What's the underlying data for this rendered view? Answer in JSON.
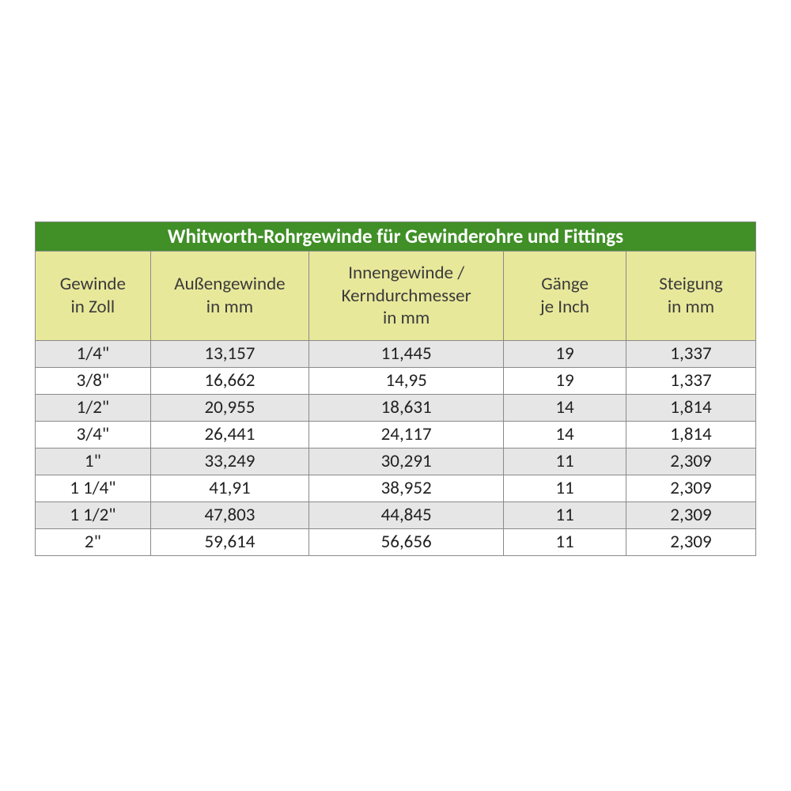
{
  "table": {
    "type": "table",
    "title": "Whitworth-Rohrgewinde für Gewinderohre und Fittings",
    "title_bg": "#408f27",
    "title_color": "#ffffff",
    "title_fontsize": 25,
    "header_bg": "#e8e89b",
    "header_color": "#3b3b3b",
    "header_fontsize": 23,
    "body_fontsize": 23,
    "row_odd_bg": "#e6e6e6",
    "row_even_bg": "#ffffff",
    "border_color": "#8a8a8a",
    "col_widths_pct": [
      16,
      22,
      27,
      17,
      18
    ],
    "columns": [
      {
        "line1": "Gewinde",
        "line2": "in Zoll"
      },
      {
        "line1": "Außengewinde",
        "line2": "in mm"
      },
      {
        "line1": "Innengewinde /",
        "line2": "Kerndurchmesser",
        "line3": "in mm"
      },
      {
        "line1": "Gänge",
        "line2": "je Inch"
      },
      {
        "line1": "Steigung",
        "line2": "in mm"
      }
    ],
    "rows": [
      [
        "1/4\"",
        "13,157",
        "11,445",
        "19",
        "1,337"
      ],
      [
        "3/8\"",
        "16,662",
        "14,95",
        "19",
        "1,337"
      ],
      [
        "1/2\"",
        "20,955",
        "18,631",
        "14",
        "1,814"
      ],
      [
        "3/4\"",
        "26,441",
        "24,117",
        "14",
        "1,814"
      ],
      [
        "1\"",
        "33,249",
        "30,291",
        "11",
        "2,309"
      ],
      [
        "1 1/4\"",
        "41,91",
        "38,952",
        "11",
        "2,309"
      ],
      [
        "1 1/2\"",
        "47,803",
        "44,845",
        "11",
        "2,309"
      ],
      [
        "2\"",
        "59,614",
        "56,656",
        "11",
        "2,309"
      ]
    ]
  }
}
